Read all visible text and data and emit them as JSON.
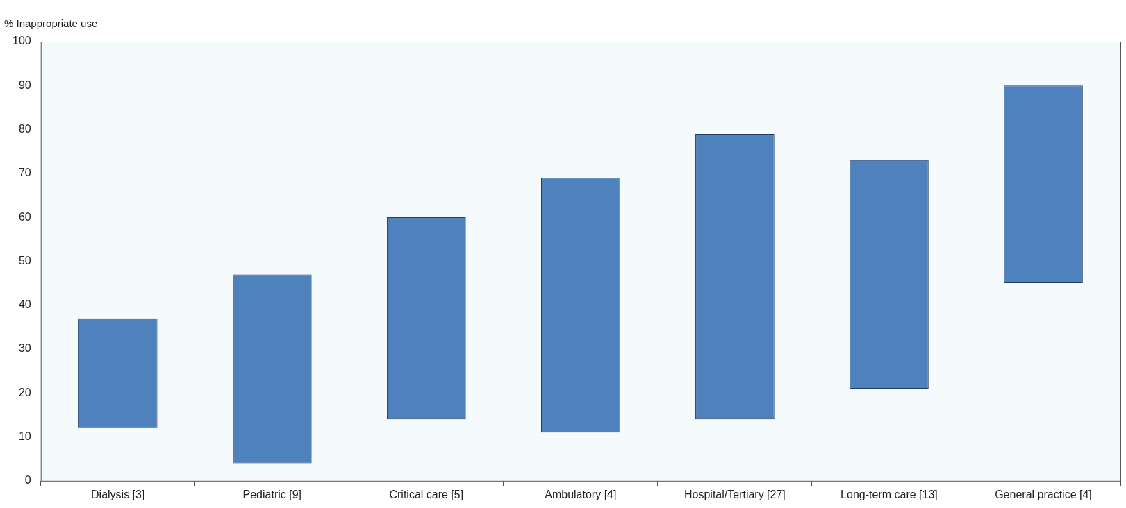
{
  "chart_data": {
    "type": "bar",
    "ylabel": "% Inappropriate use",
    "categories": [
      "Dialysis [3]",
      "Pediatric [9]",
      "Critical care [5]",
      "Ambulatory [4]",
      "Hospital/Tertiary [27]",
      "Long-term care [13]",
      "General practice [4]"
    ],
    "base": [
      12,
      4,
      14,
      11,
      14,
      21,
      45
    ],
    "values": [
      25,
      43,
      46,
      58,
      65,
      52,
      45
    ],
    "color": "#4f81bd",
    "ylim": [
      0,
      100
    ],
    "yticks": [
      0,
      10,
      20,
      30,
      40,
      50,
      60,
      70,
      80,
      90,
      100
    ],
    "grid": false,
    "legend": false
  }
}
